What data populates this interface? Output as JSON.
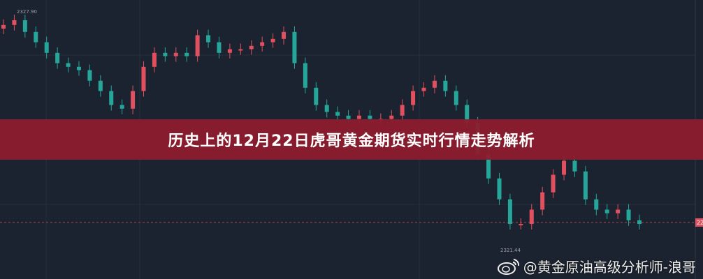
{
  "title": "历史上的12月22日虎哥黄金期货实时行情走势解析",
  "watermark": {
    "icon": "weibo-logo-icon",
    "text": "@黄金原油高级分析师-浪哥"
  },
  "colors": {
    "background": "#1c2330",
    "up": "#e0505f",
    "down": "#26a69a",
    "banner": "#8c1c2e"
  },
  "chart_data": {
    "type": "candlestick",
    "ylim": [
      2320.6,
      2328.2
    ],
    "grid": true,
    "annotations": {
      "high_label": "2327.90",
      "low_label": "2321.44",
      "last_price_tag": "22"
    },
    "close": [
      2327.52,
      2327.65,
      2327.33,
      2327.05,
      2326.76,
      2326.48,
      2326.38,
      2326.29,
      2326.0,
      2325.72,
      2325.34,
      2325.24,
      2325.72,
      2326.38,
      2326.76,
      2326.67,
      2326.76,
      2326.67,
      2327.24,
      2327.05,
      2326.76,
      2326.86,
      2326.86,
      2326.95,
      2327.05,
      2327.14,
      2327.33,
      2326.48,
      2325.81,
      2325.34,
      2325.15,
      2325.05,
      2324.96,
      2325.05,
      2324.96,
      2324.96,
      2325.05,
      2325.34,
      2325.72,
      2325.81,
      2326.0,
      2325.72,
      2325.34,
      2324.86,
      2324.0,
      2323.34,
      2322.77,
      2322.1,
      2322.1,
      2322.49,
      2322.96,
      2323.44,
      2323.82,
      2323.53,
      2322.77,
      2322.49,
      2322.39,
      2322.49,
      2322.2,
      2322.1
    ]
  }
}
